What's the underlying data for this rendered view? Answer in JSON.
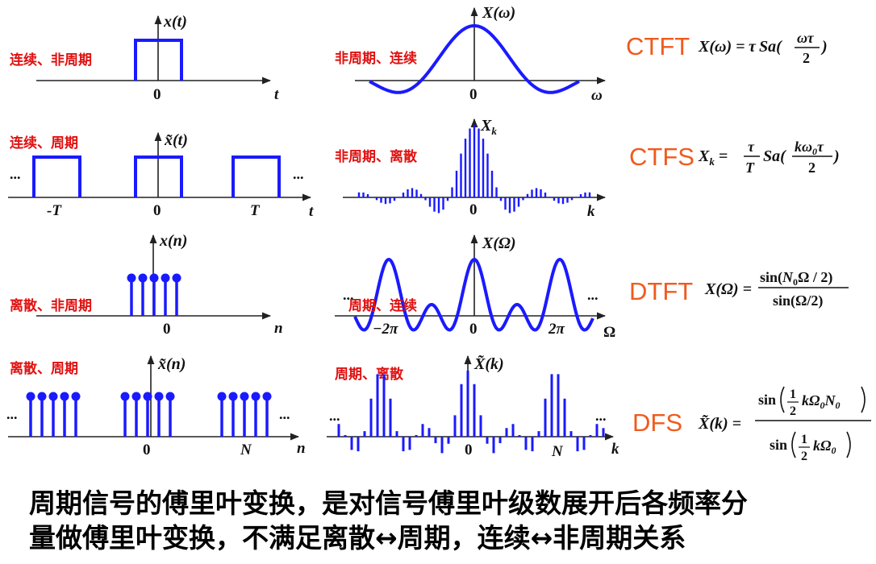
{
  "rows": [
    {
      "time": {
        "label": "连续、非周期",
        "signal": "x(t)",
        "ticks": [
          "0"
        ],
        "axis": "t"
      },
      "freq": {
        "label": "非周期、连续",
        "signal": "X(ω)",
        "ticks": [
          "0"
        ],
        "axis": "ω"
      },
      "transform": "CTFT"
    },
    {
      "time": {
        "label": "连续、周期",
        "signal": "x̃(t)",
        "ticks": [
          "-T",
          "0",
          "T"
        ],
        "axis": "t"
      },
      "freq": {
        "label": "非周期、离散",
        "signal": "X_k",
        "ticks": [
          "0"
        ],
        "axis": "k"
      },
      "transform": "CTFS"
    },
    {
      "time": {
        "label": "离散、非周期",
        "signal": "x(n)",
        "ticks": [
          "0"
        ],
        "axis": "n"
      },
      "freq": {
        "label": "周期、连续",
        "signal": "X(Ω)",
        "ticks": [
          "−2π",
          "0",
          "2π"
        ],
        "axis": "Ω"
      },
      "transform": "DTFT"
    },
    {
      "time": {
        "label": "离散、周期",
        "signal": "x̃(n)",
        "ticks": [
          "0",
          "N"
        ],
        "axis": "n"
      },
      "freq": {
        "label": "周期、离散",
        "signal": "X̃(k)",
        "ticks": [
          "0",
          "N"
        ],
        "axis": "k"
      },
      "transform": "DFS"
    }
  ],
  "ellipsis": "...",
  "formulas": {
    "ctft": "X(ω) = τ Sa(ωτ/2)",
    "ctfs": "X_k = (τ/T) Sa(kω0τ/2)",
    "dtft": "X(Ω) = sin(N0Ω/2) / sin(Ω/2)",
    "dfs": "X̃(k) = sin((1/2)kΩ0N0) / sin((1/2)kΩ0)"
  },
  "caption": {
    "line1": "周期信号的傅里叶变换，是对信号傅里叶级数展开后各频率分",
    "line2": "量做傅里叶变换，不满足离散↔周期，连续↔非周期关系"
  },
  "colors": {
    "signal": "#1a1aff",
    "label": "#e01010",
    "transform": "#f05a1e",
    "axis": "#222222"
  }
}
